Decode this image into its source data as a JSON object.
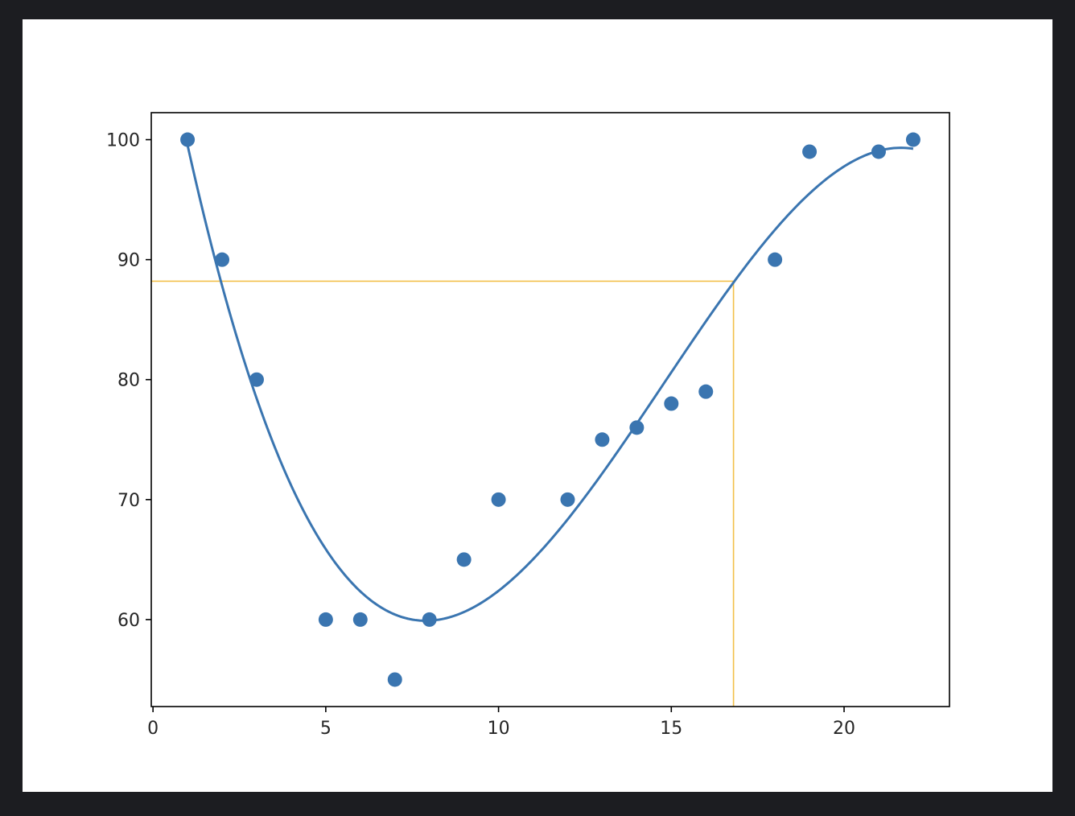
{
  "chart_data": {
    "type": "scatter",
    "xlim": [
      -0.05,
      23.05
    ],
    "ylim": [
      52.75,
      102.25
    ],
    "x_ticks": [
      0,
      5,
      10,
      15,
      20
    ],
    "x_tick_labels": [
      "0",
      "5",
      "10",
      "15",
      "20"
    ],
    "y_ticks": [
      60,
      70,
      80,
      90,
      100
    ],
    "y_tick_labels": [
      "60",
      "70",
      "80",
      "90",
      "100"
    ],
    "grid": false,
    "points": {
      "x": [
        1,
        2,
        3,
        5,
        6,
        7,
        8,
        9,
        10,
        12,
        13,
        14,
        15,
        16,
        18,
        19,
        21,
        22
      ],
      "y": [
        100,
        90,
        80,
        60,
        60,
        55,
        60,
        65,
        70,
        70,
        75,
        76,
        78,
        79,
        90,
        99,
        99,
        100
      ],
      "color": "#3a75b0"
    },
    "fit_curve": {
      "type": "polynomial",
      "degree": 3,
      "x_range": [
        1,
        22
      ],
      "color": "#3a75b0"
    },
    "guide_lines": {
      "x": 16.8,
      "y": 88.2,
      "color": "#f2c04a"
    }
  }
}
